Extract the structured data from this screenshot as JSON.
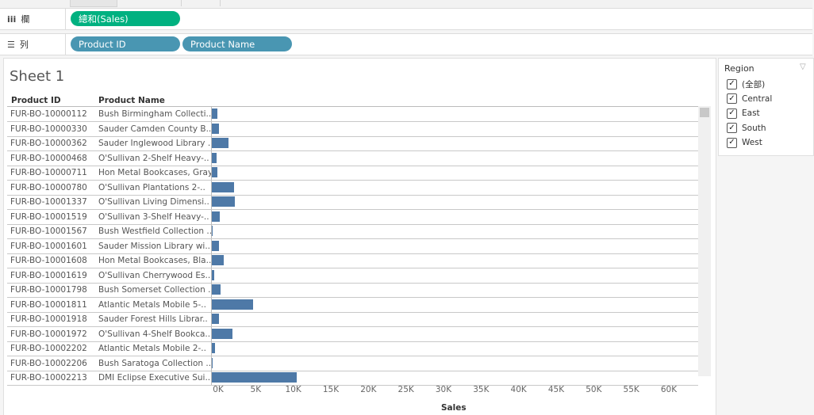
{
  "shelves": {
    "columns": {
      "label": "欄",
      "pills": [
        "總和(Sales)"
      ]
    },
    "rows": {
      "label": "列",
      "pills": [
        "Product ID",
        "Product Name"
      ]
    }
  },
  "sheet": {
    "title": "Sheet 1",
    "headers": {
      "product_id": "Product ID",
      "product_name": "Product Name"
    },
    "axis_title": "Sales",
    "axis_ticks": [
      "0K",
      "5K",
      "10K",
      "15K",
      "20K",
      "25K",
      "30K",
      "35K",
      "40K",
      "45K",
      "50K",
      "55K",
      "60K"
    ]
  },
  "chart_data": {
    "type": "bar",
    "orientation": "horizontal",
    "xlabel": "Sales",
    "xlim": [
      0,
      65000
    ],
    "grid": false,
    "categories": [
      "FUR-BO-10000112",
      "FUR-BO-10000330",
      "FUR-BO-10000362",
      "FUR-BO-10000468",
      "FUR-BO-10000711",
      "FUR-BO-10000780",
      "FUR-BO-10001337",
      "FUR-BO-10001519",
      "FUR-BO-10001567",
      "FUR-BO-10001601",
      "FUR-BO-10001608",
      "FUR-BO-10001619",
      "FUR-BO-10001798",
      "FUR-BO-10001811",
      "FUR-BO-10001918",
      "FUR-BO-10001972",
      "FUR-BO-10002202",
      "FUR-BO-10002206",
      "FUR-BO-10002213"
    ],
    "names": [
      "Bush Birmingham Collecti..",
      "Sauder Camden County B..",
      "Sauder Inglewood Library ..",
      "O'Sullivan 2-Shelf Heavy-..",
      "Hon Metal Bookcases, Gray",
      "O'Sullivan Plantations 2-..",
      "O'Sullivan Living Dimensi..",
      "O'Sullivan 3-Shelf Heavy-..",
      "Bush Westfield Collection ..",
      "Sauder Mission Library wi..",
      "Hon Metal Bookcases, Bla..",
      "O'Sullivan Cherrywood Es..",
      "Bush Somerset Collection ..",
      "Atlantic Metals Mobile 5-..",
      "Sauder Forest Hills Librar..",
      "O'Sullivan 4-Shelf Bookca..",
      "Atlantic Metals Mobile 2-..",
      "Bush Saratoga Collection ..",
      "DMI Eclipse Executive Sui.."
    ],
    "values": [
      700,
      1000,
      2200,
      650,
      750,
      3000,
      3100,
      1100,
      50,
      950,
      1550,
      350,
      1200,
      5500,
      950,
      2700,
      400,
      80,
      11300
    ]
  },
  "filter": {
    "title": "Region",
    "items": [
      {
        "label": "(全部)",
        "checked": true
      },
      {
        "label": "Central",
        "checked": true
      },
      {
        "label": "East",
        "checked": true
      },
      {
        "label": "South",
        "checked": true
      },
      {
        "label": "West",
        "checked": true
      }
    ]
  }
}
